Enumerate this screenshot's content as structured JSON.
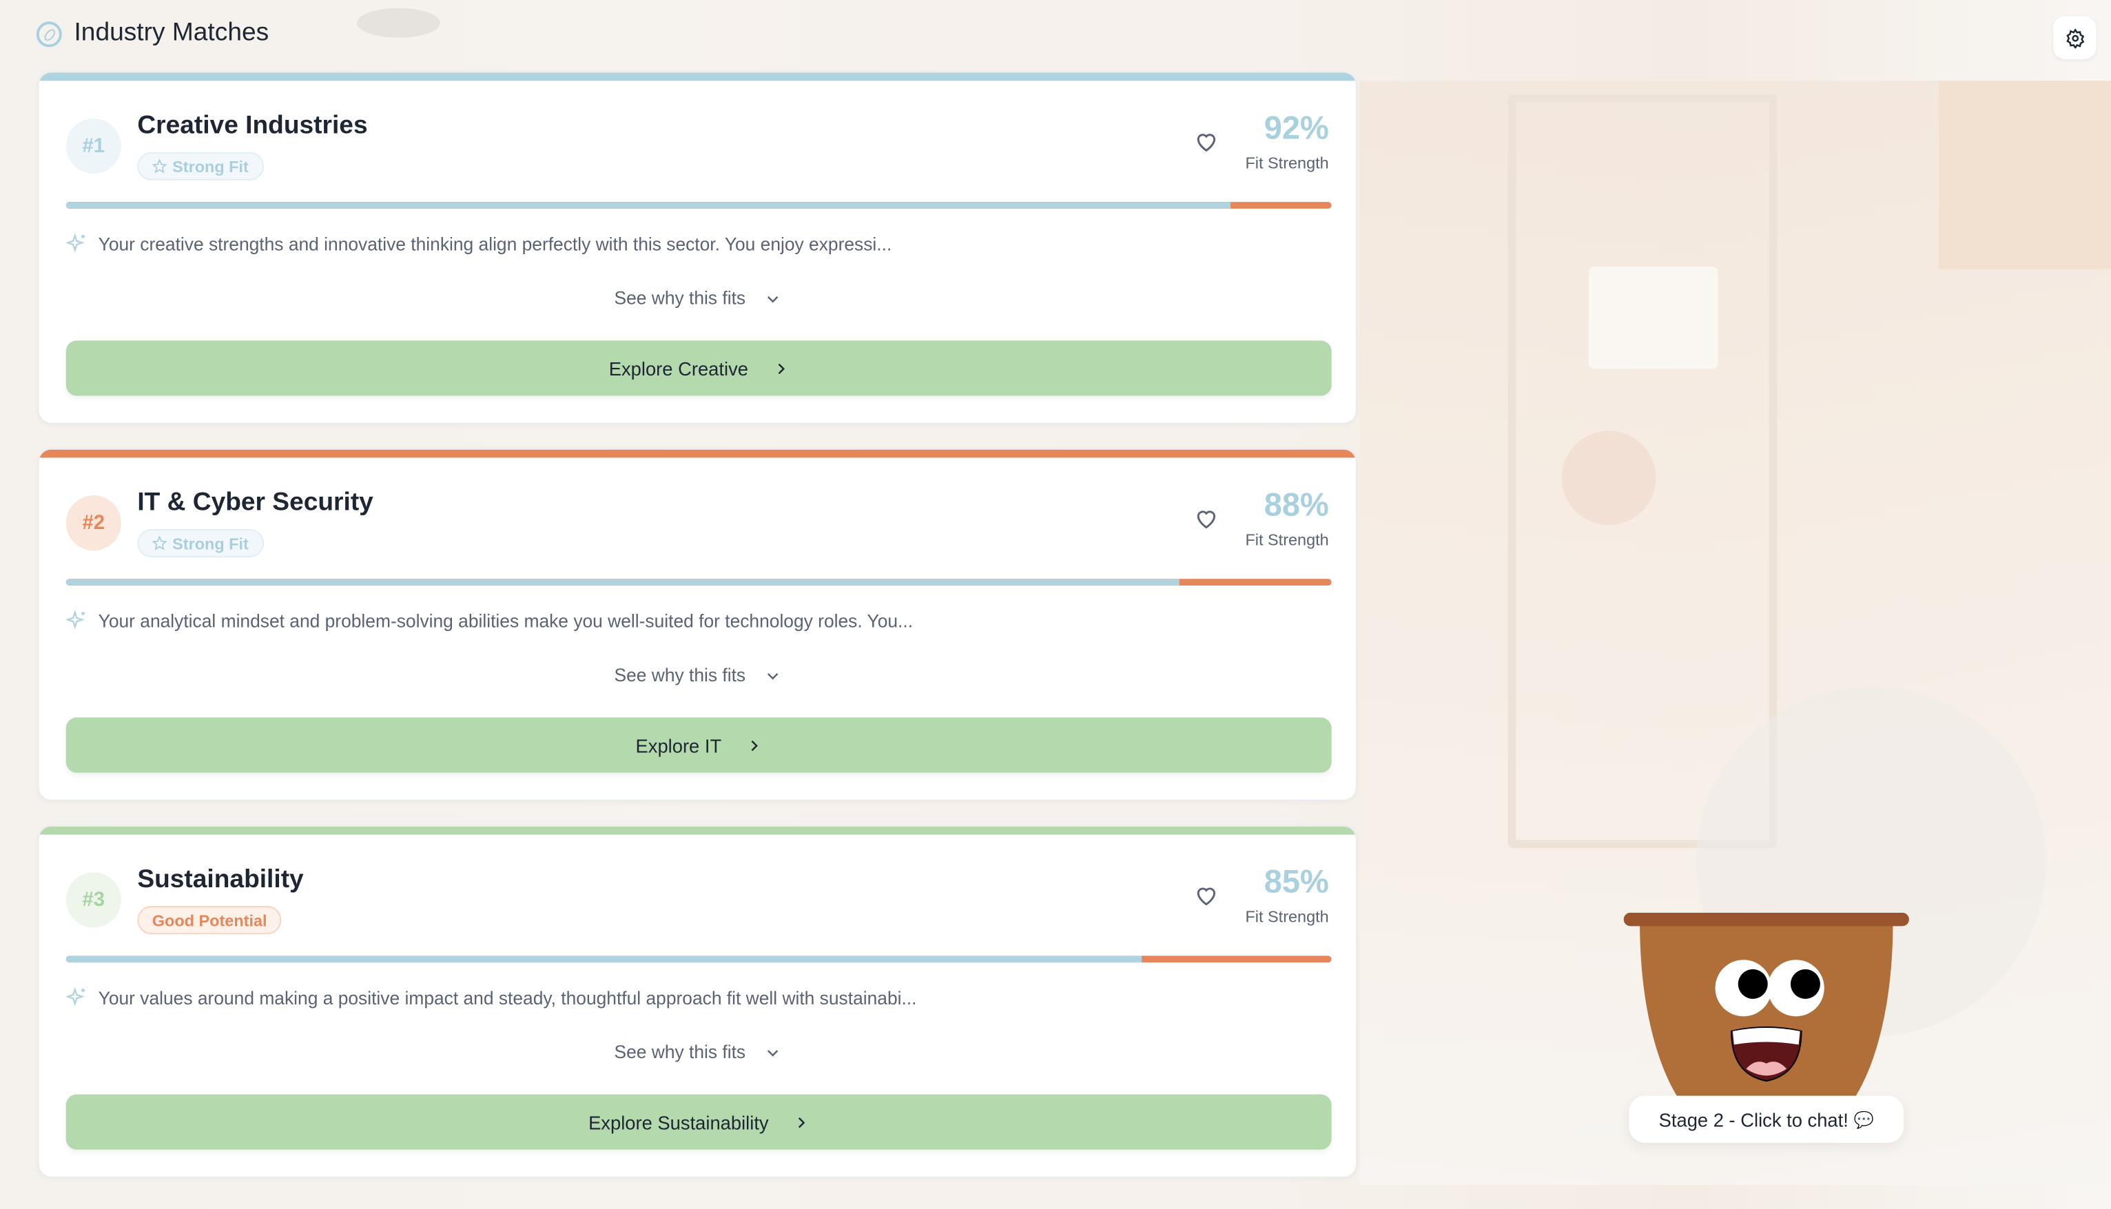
{
  "header": {
    "title": "Industry Matches",
    "icon": "compass-icon"
  },
  "settings": {
    "icon": "gear-icon"
  },
  "common": {
    "fit_label": "Fit Strength",
    "see_why": "See why this fits"
  },
  "cards": [
    {
      "rank": "#1",
      "title": "Creative Industries",
      "badge": "Strong Fit",
      "badge_icon": "star-icon",
      "fit_percent": "92%",
      "fit_value": 92,
      "accent": "#afd3e0",
      "description": "Your creative strengths and innovative thinking align perfectly with this sector. You enjoy expressi...",
      "button": "Explore Creative"
    },
    {
      "rank": "#2",
      "title": "IT & Cyber Security",
      "badge": "Strong Fit",
      "badge_icon": "star-icon",
      "fit_percent": "88%",
      "fit_value": 88,
      "accent": "#e5875a",
      "description": "Your analytical mindset and problem-solving abilities make you well-suited for technology roles. You...",
      "button": "Explore IT"
    },
    {
      "rank": "#3",
      "title": "Sustainability",
      "badge": "Good Potential",
      "badge_icon": "",
      "fit_percent": "85%",
      "fit_value": 85,
      "accent": "#b3d9ad",
      "description": "Your values around making a positive impact and steady, thoughtful approach fit well with sustainabi...",
      "button": "Explore Sustainability"
    }
  ],
  "mascot": {
    "chat_label": "Stage 2 - Click to chat!",
    "chat_icon": "speech-bubble-icon"
  },
  "colors": {
    "blue": "#afd3e0",
    "orange": "#e5875a",
    "green": "#b3d9ad",
    "pot": "#b06f38"
  }
}
